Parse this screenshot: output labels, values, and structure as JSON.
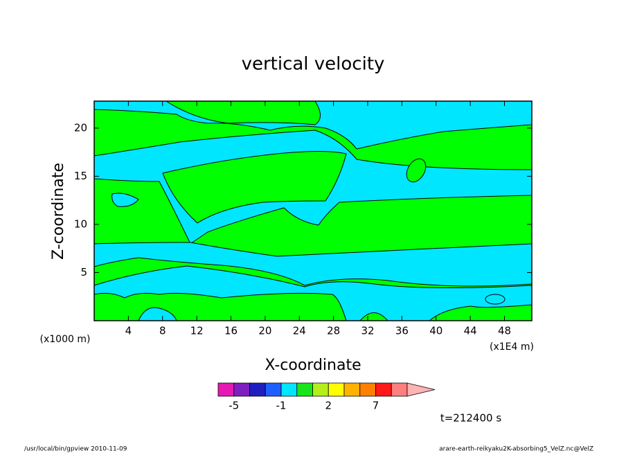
{
  "chart_data": {
    "type": "contour",
    "title": "vertical velocity",
    "xlabel": "X-coordinate",
    "ylabel": "Z-coordinate",
    "x_unit_left": "(x1000 m)",
    "x_unit_right": "(x1E4 m)",
    "xlim": [
      0,
      51.2
    ],
    "ylim": [
      0,
      22.8
    ],
    "xticks": [
      4,
      8,
      12,
      16,
      20,
      24,
      28,
      32,
      36,
      40,
      44,
      48
    ],
    "yticks": [
      5,
      10,
      15,
      20
    ],
    "colorbar": {
      "levels": [
        -5,
        -3,
        -2,
        -1,
        0,
        1,
        2,
        3,
        5,
        7,
        10,
        15
      ],
      "colors": [
        "#e619b3",
        "#7f1fbf",
        "#1f1fbf",
        "#1f5fff",
        "#00e6ff",
        "#19e619",
        "#b3f019",
        "#ffff00",
        "#ffb300",
        "#ff7f00",
        "#ff1919",
        "#ff7f7f",
        "#ffb3b3"
      ],
      "ticks": [
        -5,
        -1,
        2,
        7
      ]
    },
    "time_label": "t=212400 s",
    "footer_left": "/usr/local/bin/gpview  2010-11-09",
    "footer_right": "arare-earth-reikyaku2K-absorbing5_VelZ.nc@VelZ"
  }
}
